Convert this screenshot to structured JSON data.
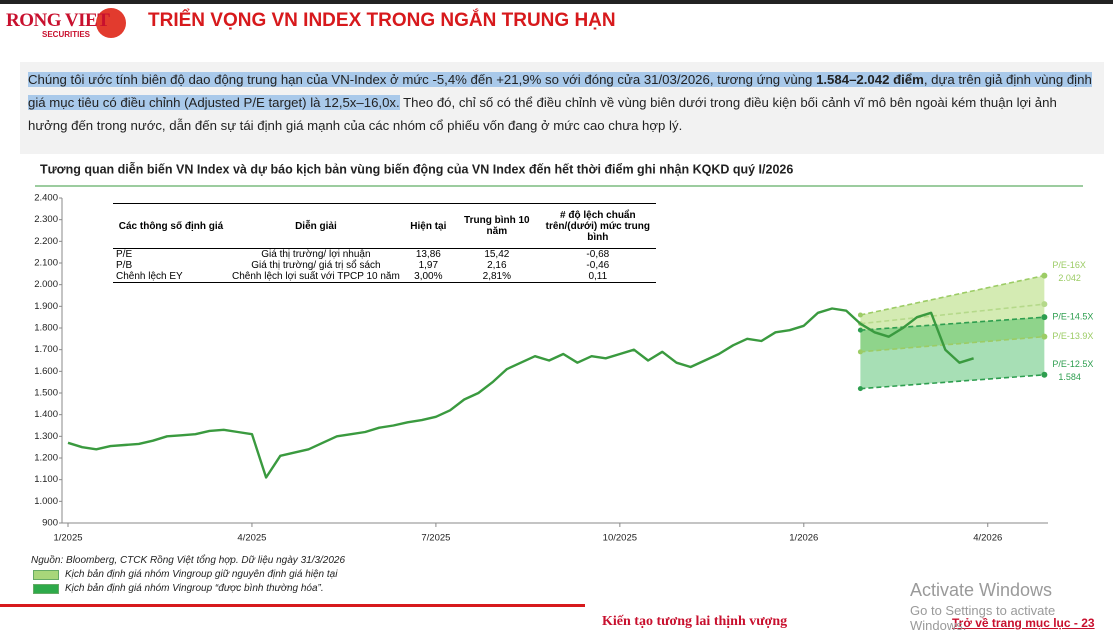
{
  "header": {
    "logo": "RONG VIET",
    "logo_sub": "SECURITIES",
    "title": "TRIỂN VỌNG VN INDEX TRONG NGẮN TRUNG HẠN"
  },
  "summary": [
    "Chúng tôi ước tính biên độ dao động trung hạn của VN-Index ở mức -5,4% đến +21,9% so với đóng cửa 31/03/2026, tương ứng vùng ",
    "1.584–2.042 điểm",
    ", dựa trên giả định vùng định giá mục tiêu có điều chỉnh (Adjusted P/E target) là 12,5x–16,0x.",
    " Theo đó, chỉ số có thể điều chỉnh về vùng biên dưới trong điều kiện bối cảnh vĩ mô bên ngoài kém thuận lợi ảnh hưởng đến trong nước, dẫn đến sự tái định giá mạnh của các nhóm cổ phiếu vốn đang ở mức cao chưa hợp lý."
  ],
  "chart_data": {
    "type": "line",
    "title": "Tương quan diễn biến VN Index và dự báo kịch bản vùng biến động của VN Index đến hết thời điểm ghi nhận KQKD quý I/2026",
    "categories": [
      "1/2025",
      null,
      null,
      null,
      null,
      null,
      null,
      null,
      null,
      null,
      null,
      null,
      null,
      "4/2025",
      null,
      null,
      null,
      null,
      null,
      null,
      null,
      null,
      null,
      null,
      null,
      null,
      "7/2025",
      null,
      null,
      null,
      null,
      null,
      null,
      null,
      null,
      null,
      null,
      null,
      null,
      "10/2025",
      null,
      null,
      null,
      null,
      null,
      null,
      null,
      null,
      null,
      null,
      null,
      null,
      "1/2026",
      null,
      null,
      null,
      null,
      null,
      null,
      null,
      null,
      null,
      null,
      null,
      null,
      "4/2026",
      null,
      null,
      null,
      null
    ],
    "values": [
      1270,
      1250,
      1240,
      1255,
      1260,
      1265,
      1280,
      1300,
      1305,
      1310,
      1325,
      1330,
      1320,
      1310,
      1110,
      1210,
      1225,
      1240,
      1270,
      1300,
      1310,
      1320,
      1340,
      1350,
      1365,
      1375,
      1390,
      1420,
      1470,
      1500,
      1550,
      1610,
      1640,
      1670,
      1650,
      1680,
      1640,
      1670,
      1660,
      1680,
      1700,
      1650,
      1690,
      1640,
      1620,
      1650,
      1680,
      1720,
      1750,
      1740,
      1780,
      1790,
      1810,
      1870,
      1890,
      1880,
      1820,
      1780,
      1760,
      1800,
      1850,
      1870,
      1700,
      1640,
      1660,
      null,
      null,
      null,
      null,
      null
    ],
    "color": "#3a9a3f",
    "ylim": [
      900,
      2400
    ],
    "yticks": [
      900,
      {
        "value": 1000,
        "label": "1.000"
      },
      {
        "value": 1100,
        "label": "1.100"
      },
      {
        "value": 1200,
        "label": "1.200"
      },
      {
        "value": 1300,
        "label": "1.300"
      },
      {
        "value": 1400,
        "label": "1.400"
      },
      {
        "value": 1500,
        "label": "1.500"
      },
      {
        "value": 1600,
        "label": "1.600"
      },
      {
        "value": 1700,
        "label": "1.700"
      },
      {
        "value": 1800,
        "label": "1.800"
      },
      {
        "value": 1900,
        "label": "1.900"
      },
      {
        "value": 2000,
        "label": "2.000"
      },
      {
        "value": 2100,
        "label": "2.100"
      },
      {
        "value": 2200,
        "label": "2.200"
      },
      {
        "value": 2300,
        "label": "2.300"
      },
      {
        "value": 2400,
        "label": "2.400"
      }
    ],
    "scenarios": [
      {
        "name": "P/E-16X",
        "start": 1860,
        "end": 2042,
        "end_label": "2.042",
        "color": "#9ccc65"
      },
      {
        "start": 1820,
        "end": 1910,
        "color": "#b5d98a"
      },
      {
        "name": "P/E-14.5X",
        "start": 1790,
        "end": 1850,
        "color": "#2e9e4f"
      },
      {
        "name": "P/E-13.9X",
        "start": 1690,
        "end": 1760,
        "color": "#9ccc65"
      },
      {
        "name": "P/E-12.5X",
        "start": 1520,
        "end": 1584,
        "end_label": "1.584",
        "color": "#2e9e4f"
      }
    ],
    "legend": [
      {
        "label": "Kịch bản định giá nhóm Vingroup giữ nguyên định giá hiện tại",
        "color": "#a8d67a"
      },
      {
        "label": "Kịch bản định giá nhóm Vingroup “được bình thường hóa”.",
        "color": "#2eaa4a"
      }
    ],
    "source": "Nguồn: Bloomberg, CTCK Rồng Việt tổng hợp. Dữ liệu ngày 31/3/2026"
  },
  "table": {
    "header": [
      "Các thông số định giá",
      "Diễn giải",
      "Hiện tại",
      "Trung bình 10 năm",
      "# độ lệch chuẩn trên/(dưới) mức trung bình"
    ],
    "rows": [
      [
        "P/E",
        "Giá thị trường/ lợi nhuận",
        "13,86",
        "15,42",
        "-0,68"
      ],
      [
        "P/B",
        "Giá thị trường/ giá trị sổ sách",
        "1,97",
        "2,16",
        "-0,46"
      ],
      [
        "Chênh lệch EY",
        "Chênh lệch lợi suất với TPCP 10 năm",
        "3,00%",
        "2,81%",
        "0,11"
      ]
    ]
  },
  "footer": {
    "slogan": "Kiến tạo tương lai thịnh vượng",
    "toc": "Trở về trang mục lục - 23",
    "watermark": [
      "Activate Windows",
      "Go to Settings to activate Windows."
    ]
  }
}
